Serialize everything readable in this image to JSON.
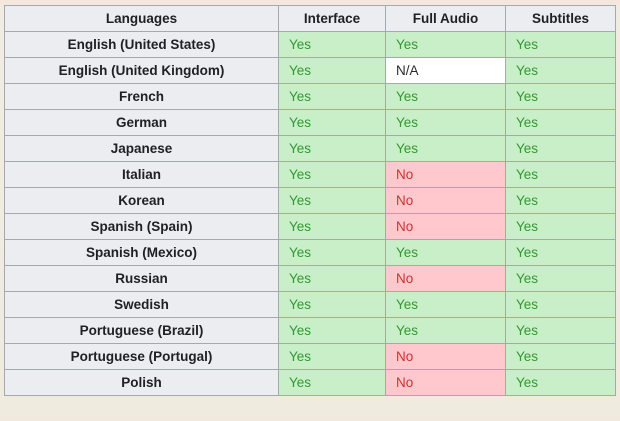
{
  "table": {
    "columns": [
      "Languages",
      "Interface",
      "Full Audio",
      "Subtitles"
    ],
    "rows": [
      {
        "language": "English (United States)",
        "interface": "Yes",
        "full_audio": "Yes",
        "subtitles": "Yes"
      },
      {
        "language": "English (United Kingdom)",
        "interface": "Yes",
        "full_audio": "N/A",
        "subtitles": "Yes"
      },
      {
        "language": "French",
        "interface": "Yes",
        "full_audio": "Yes",
        "subtitles": "Yes"
      },
      {
        "language": "German",
        "interface": "Yes",
        "full_audio": "Yes",
        "subtitles": "Yes"
      },
      {
        "language": "Japanese",
        "interface": "Yes",
        "full_audio": "Yes",
        "subtitles": "Yes"
      },
      {
        "language": "Italian",
        "interface": "Yes",
        "full_audio": "No",
        "subtitles": "Yes"
      },
      {
        "language": "Korean",
        "interface": "Yes",
        "full_audio": "No",
        "subtitles": "Yes"
      },
      {
        "language": "Spanish (Spain)",
        "interface": "Yes",
        "full_audio": "No",
        "subtitles": "Yes"
      },
      {
        "language": "Spanish (Mexico)",
        "interface": "Yes",
        "full_audio": "Yes",
        "subtitles": "Yes"
      },
      {
        "language": "Russian",
        "interface": "Yes",
        "full_audio": "No",
        "subtitles": "Yes"
      },
      {
        "language": "Swedish",
        "interface": "Yes",
        "full_audio": "Yes",
        "subtitles": "Yes"
      },
      {
        "language": "Portuguese (Brazil)",
        "interface": "Yes",
        "full_audio": "Yes",
        "subtitles": "Yes"
      },
      {
        "language": "Portuguese (Portugal)",
        "interface": "Yes",
        "full_audio": "No",
        "subtitles": "Yes"
      },
      {
        "language": "Polish",
        "interface": "Yes",
        "full_audio": "No",
        "subtitles": "Yes"
      }
    ]
  },
  "colors": {
    "page_bg": "#f0ebdf",
    "header_bg": "#ebedf0",
    "header_text": "#202122",
    "border_color": "#a2a9b1",
    "yes_bg": "#c8efc8",
    "yes_text": "#339933",
    "no_bg": "#ffc8cd",
    "no_text": "#cc3333",
    "na_bg": "#ffffff",
    "na_text": "#2b2b2b"
  },
  "chart_data": {
    "type": "table",
    "title": "",
    "columns": [
      "Languages",
      "Interface",
      "Full Audio",
      "Subtitles"
    ],
    "rows": [
      [
        "English (United States)",
        "Yes",
        "Yes",
        "Yes"
      ],
      [
        "English (United Kingdom)",
        "Yes",
        "N/A",
        "Yes"
      ],
      [
        "French",
        "Yes",
        "Yes",
        "Yes"
      ],
      [
        "German",
        "Yes",
        "Yes",
        "Yes"
      ],
      [
        "Japanese",
        "Yes",
        "Yes",
        "Yes"
      ],
      [
        "Italian",
        "Yes",
        "No",
        "Yes"
      ],
      [
        "Korean",
        "Yes",
        "No",
        "Yes"
      ],
      [
        "Spanish (Spain)",
        "Yes",
        "No",
        "Yes"
      ],
      [
        "Spanish (Mexico)",
        "Yes",
        "Yes",
        "Yes"
      ],
      [
        "Russian",
        "Yes",
        "No",
        "Yes"
      ],
      [
        "Swedish",
        "Yes",
        "Yes",
        "Yes"
      ],
      [
        "Portuguese (Brazil)",
        "Yes",
        "Yes",
        "Yes"
      ],
      [
        "Portuguese (Portugal)",
        "Yes",
        "No",
        "Yes"
      ],
      [
        "Polish",
        "Yes",
        "No",
        "Yes"
      ]
    ],
    "cell_status_legend": {
      "Yes": "supported (green)",
      "No": "unsupported (pink)",
      "N/A": "not applicable (white)"
    }
  }
}
